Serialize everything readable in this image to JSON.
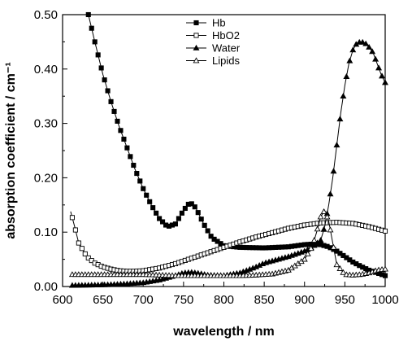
{
  "chart_data": {
    "type": "line",
    "xlabel": "wavelength / nm",
    "ylabel": "absorption coefficient / cm⁻¹",
    "xlim": [
      600,
      1000
    ],
    "ylim": [
      0,
      0.5
    ],
    "x_ticks": [
      "600",
      "650",
      "700",
      "750",
      "800",
      "850",
      "900",
      "950",
      "1000"
    ],
    "y_ticks": [
      "0.00",
      "0.10",
      "0.20",
      "0.30",
      "0.40",
      "0.50"
    ],
    "grid": false,
    "legend_position": "top-center",
    "series": [
      {
        "name": "Hb",
        "marker": "filled-square",
        "x": [
          632,
          640,
          650,
          660,
          670,
          680,
          690,
          700,
          710,
          720,
          730,
          740,
          750,
          758,
          765,
          775,
          785,
          800,
          820,
          850,
          880,
          900,
          910,
          920,
          930,
          940,
          950,
          960,
          970,
          980,
          990,
          1000
        ],
        "y": [
          0.5,
          0.45,
          0.39,
          0.34,
          0.295,
          0.255,
          0.215,
          0.18,
          0.15,
          0.125,
          0.11,
          0.115,
          0.14,
          0.155,
          0.145,
          0.115,
          0.09,
          0.075,
          0.072,
          0.071,
          0.073,
          0.077,
          0.078,
          0.077,
          0.073,
          0.065,
          0.055,
          0.045,
          0.037,
          0.03,
          0.025,
          0.02
        ]
      },
      {
        "name": "HbO2",
        "marker": "open-square",
        "x": [
          610,
          615,
          620,
          630,
          640,
          650,
          660,
          670,
          680,
          690,
          700,
          720,
          740,
          760,
          780,
          800,
          820,
          840,
          860,
          880,
          900,
          920,
          940,
          960,
          980,
          1000
        ],
        "y": [
          0.138,
          0.11,
          0.08,
          0.055,
          0.043,
          0.036,
          0.032,
          0.029,
          0.028,
          0.028,
          0.029,
          0.034,
          0.042,
          0.052,
          0.062,
          0.072,
          0.082,
          0.091,
          0.099,
          0.107,
          0.113,
          0.117,
          0.118,
          0.116,
          0.11,
          0.102
        ]
      },
      {
        "name": "Water",
        "marker": "filled-triangle",
        "x": [
          610,
          650,
          680,
          700,
          720,
          740,
          750,
          760,
          770,
          780,
          800,
          820,
          840,
          850,
          860,
          880,
          900,
          910,
          920,
          925,
          930,
          935,
          940,
          945,
          950,
          955,
          960,
          965,
          970,
          975,
          980,
          985,
          990,
          995,
          1000
        ],
        "y": [
          0.002,
          0.003,
          0.005,
          0.007,
          0.012,
          0.02,
          0.025,
          0.026,
          0.024,
          0.021,
          0.02,
          0.025,
          0.036,
          0.043,
          0.047,
          0.055,
          0.065,
          0.073,
          0.085,
          0.11,
          0.15,
          0.2,
          0.26,
          0.32,
          0.37,
          0.41,
          0.435,
          0.448,
          0.45,
          0.448,
          0.44,
          0.43,
          0.41,
          0.39,
          0.375
        ]
      },
      {
        "name": "Lipids",
        "marker": "open-triangle",
        "x": [
          610,
          650,
          700,
          720,
          740,
          760,
          780,
          800,
          820,
          840,
          860,
          880,
          900,
          910,
          915,
          920,
          925,
          930,
          935,
          940,
          950,
          960,
          970,
          980,
          990,
          1000
        ],
        "y": [
          0.022,
          0.022,
          0.022,
          0.021,
          0.02,
          0.02,
          0.02,
          0.02,
          0.02,
          0.021,
          0.023,
          0.03,
          0.05,
          0.075,
          0.1,
          0.128,
          0.14,
          0.12,
          0.08,
          0.04,
          0.022,
          0.021,
          0.022,
          0.025,
          0.03,
          0.032
        ]
      }
    ]
  }
}
